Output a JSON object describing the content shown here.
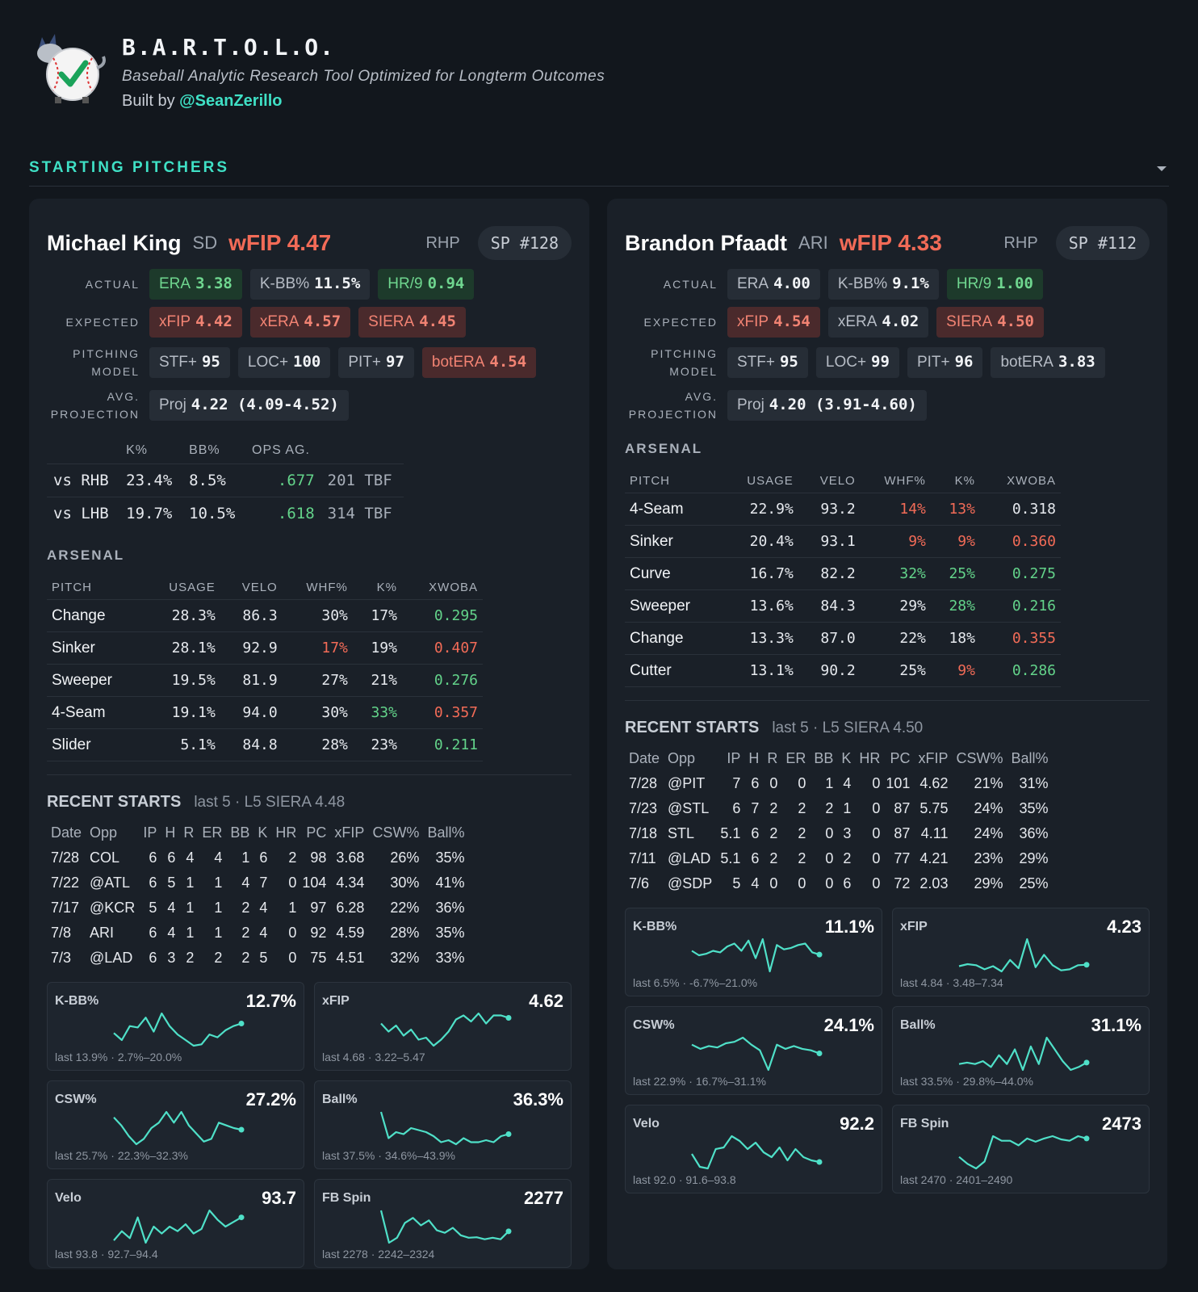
{
  "header": {
    "title": "B.A.R.T.O.L.O.",
    "subtitle": "Baseball Analytic Research Tool Optimized for Longterm Outcomes",
    "built_by": "Built by",
    "handle": "@SeanZerillo"
  },
  "section_title": "STARTING PITCHERS",
  "pitchers": [
    {
      "name": "Michael King",
      "team": "SD",
      "wfip_label": "wFIP",
      "wfip": "4.47",
      "hand": "RHP",
      "rank_label": "SP",
      "rank": "#128",
      "metrics": [
        {
          "label": "ACTUAL",
          "chips": [
            {
              "name": "ERA",
              "value": "3.38",
              "tone": "good"
            },
            {
              "name": "K-BB%",
              "value": "11.5%",
              "tone": "neutral"
            },
            {
              "name": "HR/9",
              "value": "0.94",
              "tone": "good"
            }
          ]
        },
        {
          "label": "EXPECTED",
          "chips": [
            {
              "name": "xFIP",
              "value": "4.42",
              "tone": "bad"
            },
            {
              "name": "xERA",
              "value": "4.57",
              "tone": "bad"
            },
            {
              "name": "SIERA",
              "value": "4.45",
              "tone": "bad"
            }
          ]
        },
        {
          "label": "PITCHING MODEL",
          "chips": [
            {
              "name": "STF+",
              "value": "95",
              "tone": "neutral"
            },
            {
              "name": "LOC+",
              "value": "100",
              "tone": "neutral"
            },
            {
              "name": "PIT+",
              "value": "97",
              "tone": "neutral"
            },
            {
              "name": "botERA",
              "value": "4.54",
              "tone": "bad"
            }
          ]
        },
        {
          "label": "AVG. PROJECTION",
          "chips": [
            {
              "name": "Proj",
              "value": "4.22 (4.09-4.52)",
              "tone": "neutral"
            }
          ]
        }
      ],
      "splits": {
        "columns": [
          "K%",
          "BB%",
          "OPS AG."
        ],
        "rows": [
          [
            "vs RHB",
            "23.4%",
            "8.5%",
            ".677",
            "201 TBF"
          ],
          [
            "vs LHB",
            "19.7%",
            "10.5%",
            ".618",
            "314 TBF"
          ]
        ]
      },
      "arsenal": {
        "title": "ARSENAL",
        "columns": [
          "PITCH",
          "USAGE",
          "VELO",
          "WHF%",
          "K%",
          "XWOBA"
        ],
        "rows": [
          [
            "Change",
            "28.3%",
            "86.3",
            "30%",
            "17%",
            {
              "text": "0.295",
              "tone": "good"
            }
          ],
          [
            "Sinker",
            "28.1%",
            "92.9",
            {
              "text": "17%",
              "tone": "bad"
            },
            "19%",
            {
              "text": "0.407",
              "tone": "bad"
            }
          ],
          [
            "Sweeper",
            "19.5%",
            "81.9",
            "27%",
            "21%",
            {
              "text": "0.276",
              "tone": "good"
            }
          ],
          [
            "4-Seam",
            "19.1%",
            "94.0",
            "30%",
            {
              "text": "33%",
              "tone": "good"
            },
            {
              "text": "0.357",
              "tone": "bad"
            }
          ],
          [
            "Slider",
            "5.1%",
            "84.8",
            "28%",
            "23%",
            {
              "text": "0.211",
              "tone": "good"
            }
          ]
        ]
      },
      "recent": {
        "title": "RECENT STARTS",
        "note": "last 5 · L5 SIERA 4.48",
        "columns": [
          "Date",
          "Opp",
          "IP",
          "H",
          "R",
          "ER",
          "BB",
          "K",
          "HR",
          "PC",
          "xFIP",
          "CSW%",
          "Ball%"
        ],
        "rows": [
          [
            "7/28",
            "COL",
            "6",
            "6",
            "4",
            "4",
            "1",
            "6",
            "2",
            "98",
            "3.68",
            "26%",
            "35%"
          ],
          [
            "7/22",
            "@ATL",
            "6",
            "5",
            "1",
            "1",
            "4",
            "7",
            "0",
            "104",
            "4.34",
            "30%",
            "41%"
          ],
          [
            "7/17",
            "@KCR",
            "5",
            "4",
            "1",
            "1",
            "2",
            "4",
            "1",
            "97",
            "6.28",
            "22%",
            "36%"
          ],
          [
            "7/8",
            "ARI",
            "6",
            "4",
            "1",
            "1",
            "2",
            "4",
            "0",
            "92",
            "4.59",
            "28%",
            "35%"
          ],
          [
            "7/3",
            "@LAD",
            "6",
            "3",
            "2",
            "2",
            "2",
            "5",
            "0",
            "75",
            "4.51",
            "32%",
            "33%"
          ]
        ]
      },
      "trends": [
        {
          "label": "K-BB%",
          "value": "12.7%",
          "note": "last 13.9% · 2.7%–20.0%",
          "points": [
            10.5,
            8,
            13,
            12.5,
            16,
            11,
            17.5,
            13,
            10,
            8,
            6,
            6.5,
            10,
            9,
            11.5,
            13,
            13.9
          ]
        },
        {
          "label": "xFIP",
          "value": "4.62",
          "note": "last 4.68 · 3.22–5.47",
          "points": [
            4.4,
            4.0,
            4.3,
            3.8,
            4.1,
            3.6,
            3.7,
            3.3,
            3.6,
            4.0,
            4.6,
            4.8,
            4.5,
            4.9,
            4.4,
            4.8,
            4.8,
            4.68
          ]
        },
        {
          "label": "CSW%",
          "value": "27.2%",
          "note": "last 25.7% · 22.3%–32.3%",
          "points": [
            28,
            26.5,
            24.5,
            23,
            24,
            26,
            27,
            29,
            27,
            29,
            26.5,
            25,
            23.5,
            24,
            27,
            26.5,
            26,
            25.7
          ]
        },
        {
          "label": "Ball%",
          "value": "36.3%",
          "note": "last 37.5% · 34.6%–43.9%",
          "points": [
            43,
            36.5,
            38,
            37.5,
            39,
            38.5,
            38,
            37,
            35.5,
            36,
            35,
            36.5,
            35.5,
            35.5,
            36,
            35.5,
            37,
            37.5
          ]
        },
        {
          "label": "Velo",
          "value": "93.7",
          "note": "last 93.8 · 92.7–94.4",
          "points": [
            92.8,
            93.2,
            92.9,
            93.8,
            92.7,
            93.4,
            93.1,
            93.4,
            93.2,
            93.5,
            93.1,
            93.3,
            94.1,
            93.7,
            93.4,
            93.6,
            93.8
          ]
        },
        {
          "label": "FB Spin",
          "value": "2277",
          "note": "last 2278 · 2242–2324",
          "points": [
            2320,
            2255,
            2265,
            2295,
            2305,
            2290,
            2300,
            2280,
            2275,
            2285,
            2270,
            2265,
            2266,
            2262,
            2265,
            2262,
            2278
          ]
        }
      ]
    },
    {
      "name": "Brandon Pfaadt",
      "team": "ARI",
      "wfip_label": "wFIP",
      "wfip": "4.33",
      "hand": "RHP",
      "rank_label": "SP",
      "rank": "#112",
      "metrics": [
        {
          "label": "ACTUAL",
          "chips": [
            {
              "name": "ERA",
              "value": "4.00",
              "tone": "neutral"
            },
            {
              "name": "K-BB%",
              "value": "9.1%",
              "tone": "neutral"
            },
            {
              "name": "HR/9",
              "value": "1.00",
              "tone": "good"
            }
          ]
        },
        {
          "label": "EXPECTED",
          "chips": [
            {
              "name": "xFIP",
              "value": "4.54",
              "tone": "bad"
            },
            {
              "name": "xERA",
              "value": "4.02",
              "tone": "neutral"
            },
            {
              "name": "SIERA",
              "value": "4.50",
              "tone": "bad"
            }
          ]
        },
        {
          "label": "PITCHING MODEL",
          "chips": [
            {
              "name": "STF+",
              "value": "95",
              "tone": "neutral"
            },
            {
              "name": "LOC+",
              "value": "99",
              "tone": "neutral"
            },
            {
              "name": "PIT+",
              "value": "96",
              "tone": "neutral"
            },
            {
              "name": "botERA",
              "value": "3.83",
              "tone": "neutral"
            }
          ]
        },
        {
          "label": "AVG. PROJECTION",
          "chips": [
            {
              "name": "Proj",
              "value": "4.20 (3.91-4.60)",
              "tone": "neutral"
            }
          ]
        }
      ],
      "arsenal": {
        "title": "ARSENAL",
        "columns": [
          "PITCH",
          "USAGE",
          "VELO",
          "WHF%",
          "K%",
          "XWOBA"
        ],
        "rows": [
          [
            "4-Seam",
            "22.9%",
            "93.2",
            {
              "text": "14%",
              "tone": "bad"
            },
            {
              "text": "13%",
              "tone": "bad"
            },
            "0.318"
          ],
          [
            "Sinker",
            "20.4%",
            "93.1",
            {
              "text": "9%",
              "tone": "bad"
            },
            {
              "text": "9%",
              "tone": "bad"
            },
            {
              "text": "0.360",
              "tone": "bad"
            }
          ],
          [
            "Curve",
            "16.7%",
            "82.2",
            {
              "text": "32%",
              "tone": "good"
            },
            {
              "text": "25%",
              "tone": "good"
            },
            {
              "text": "0.275",
              "tone": "good"
            }
          ],
          [
            "Sweeper",
            "13.6%",
            "84.3",
            "29%",
            {
              "text": "28%",
              "tone": "good"
            },
            {
              "text": "0.216",
              "tone": "good"
            }
          ],
          [
            "Change",
            "13.3%",
            "87.0",
            "22%",
            "18%",
            {
              "text": "0.355",
              "tone": "bad"
            }
          ],
          [
            "Cutter",
            "13.1%",
            "90.2",
            "25%",
            {
              "text": "9%",
              "tone": "bad"
            },
            {
              "text": "0.286",
              "tone": "good"
            }
          ]
        ]
      },
      "recent": {
        "title": "RECENT STARTS",
        "note": "last 5 · L5 SIERA 4.50",
        "columns": [
          "Date",
          "Opp",
          "IP",
          "H",
          "R",
          "ER",
          "BB",
          "K",
          "HR",
          "PC",
          "xFIP",
          "CSW%",
          "Ball%"
        ],
        "rows": [
          [
            "7/28",
            "@PIT",
            "7",
            "6",
            "0",
            "0",
            "1",
            "4",
            "0",
            "101",
            "4.62",
            "21%",
            "31%"
          ],
          [
            "7/23",
            "@STL",
            "6",
            "7",
            "2",
            "2",
            "2",
            "1",
            "0",
            "87",
            "5.75",
            "24%",
            "35%"
          ],
          [
            "7/18",
            "STL",
            "5.1",
            "6",
            "2",
            "2",
            "0",
            "3",
            "0",
            "87",
            "4.11",
            "24%",
            "36%"
          ],
          [
            "7/11",
            "@LAD",
            "5.1",
            "6",
            "2",
            "2",
            "0",
            "2",
            "0",
            "77",
            "4.21",
            "23%",
            "29%"
          ],
          [
            "7/6",
            "@SDP",
            "5",
            "4",
            "0",
            "0",
            "0",
            "6",
            "0",
            "72",
            "2.03",
            "29%",
            "25%"
          ]
        ]
      },
      "trends": [
        {
          "label": "K-BB%",
          "value": "11.1%",
          "note": "last 6.5% · -6.7%–21.0%",
          "points": [
            9,
            6,
            7,
            9,
            8,
            12,
            14,
            9,
            16,
            4,
            17,
            -5,
            13,
            10,
            11,
            13,
            14,
            8,
            6.5
          ]
        },
        {
          "label": "xFIP",
          "value": "4.23",
          "note": "last 4.84 · 3.48–7.34",
          "points": [
            4.7,
            4.9,
            4.8,
            4.4,
            4.7,
            4.2,
            5.3,
            4.5,
            7.3,
            4.6,
            5.8,
            4.8,
            4.3,
            4.4,
            4.8,
            4.84
          ]
        },
        {
          "label": "CSW%",
          "value": "24.1%",
          "note": "last 22.9% · 16.7%–31.1%",
          "points": [
            26,
            24.5,
            25.5,
            25,
            26.5,
            27,
            28.5,
            26,
            24,
            17,
            26,
            24.5,
            25.5,
            24.5,
            24,
            22.9
          ]
        },
        {
          "label": "Ball%",
          "value": "31.1%",
          "note": "last 33.5% · 29.8%–44.0%",
          "points": [
            33,
            33.5,
            33,
            34,
            32,
            36,
            33,
            38,
            31,
            39,
            33,
            42,
            38,
            34,
            31,
            32,
            33.5
          ]
        },
        {
          "label": "Velo",
          "value": "92.2",
          "note": "last 92.0 · 91.6–93.8",
          "points": [
            92.5,
            91.7,
            91.6,
            92.8,
            92.9,
            93.6,
            93.3,
            92.8,
            93.2,
            92.6,
            92.3,
            92.9,
            92.1,
            92.8,
            92.3,
            92.1,
            92.0
          ]
        },
        {
          "label": "FB Spin",
          "value": "2473",
          "note": "last 2470 · 2401–2490",
          "points": [
            2430,
            2415,
            2405,
            2420,
            2475,
            2465,
            2465,
            2455,
            2470,
            2463,
            2470,
            2475,
            2468,
            2465,
            2475,
            2470
          ]
        }
      ]
    }
  ]
}
